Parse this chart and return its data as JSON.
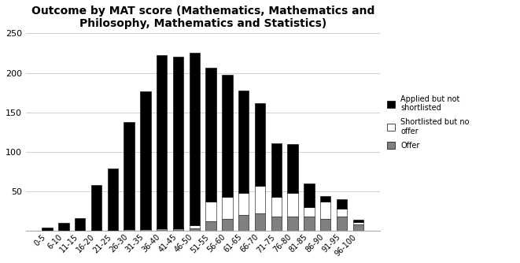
{
  "title": "Outcome by MAT score (Mathematics, Mathematics and\nPhilosophy, Mathematics and Statistics)",
  "categories": [
    "0-5",
    "6-10",
    "11-15",
    "16-20",
    "21-25",
    "26-30",
    "31-35",
    "36-40",
    "41-45",
    "46-50",
    "51-55",
    "56-60",
    "61-65",
    "66-70",
    "71-75",
    "76-80",
    "81-85",
    "86-90",
    "91-95",
    "96-100"
  ],
  "applied_not_shortlisted": [
    4,
    10,
    16,
    57,
    78,
    136,
    175,
    220,
    218,
    219,
    170,
    155,
    130,
    105,
    68,
    62,
    30,
    7,
    12,
    3
  ],
  "shortlisted_no_offer": [
    0,
    0,
    0,
    0,
    0,
    0,
    0,
    0,
    0,
    4,
    25,
    28,
    28,
    35,
    25,
    30,
    12,
    22,
    10,
    3
  ],
  "offer": [
    0,
    0,
    0,
    1,
    1,
    2,
    2,
    3,
    3,
    3,
    12,
    15,
    20,
    22,
    18,
    18,
    18,
    15,
    18,
    8
  ],
  "ylim": [
    0,
    250
  ],
  "yticks": [
    50,
    100,
    150,
    200,
    250
  ],
  "color_applied": "#000000",
  "color_shortlisted": "#ffffff",
  "color_offer": "#808080",
  "legend_labels": [
    "Applied but not\nshortlisted",
    "Shortlisted but no\noffer",
    "Offer"
  ],
  "bar_edgecolor": "#000000",
  "figsize": [
    6.61,
    3.34
  ],
  "dpi": 100
}
